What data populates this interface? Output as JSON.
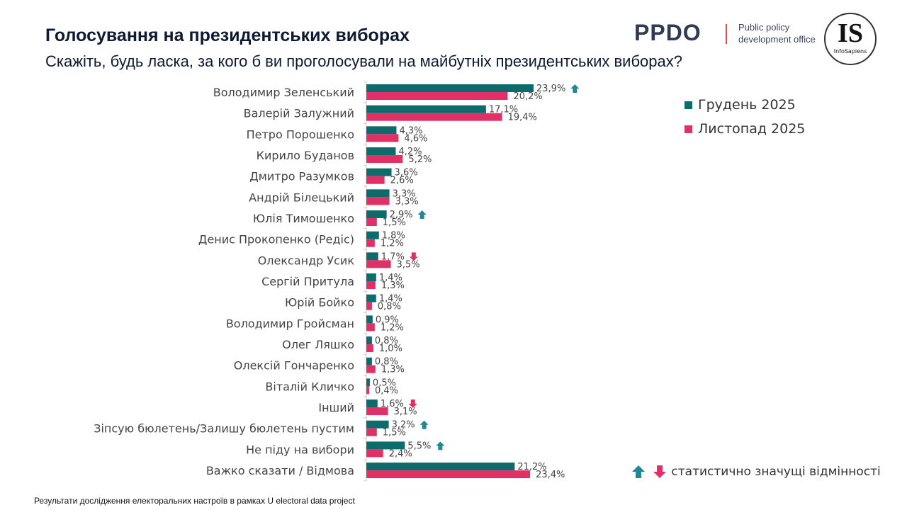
{
  "header": {
    "title": "Голосування на президентських виборах",
    "subtitle": "Скажіть, будь ласка, за кого б ви проголосували на майбутніх президентських виборах?"
  },
  "logos": {
    "ppdo": "PPDO",
    "ppdo_text_1": "Public policy",
    "ppdo_text_2": "development office",
    "is_big": "IS",
    "is_small": "InfoSapiens"
  },
  "footer": "Результати дослідження електоральних настроїв в рамках U electoral data project",
  "significance_legend": "статистично значущі відмінності",
  "colors": {
    "dec": "#0e6b6b",
    "nov": "#e03065",
    "up": "#1f8a96",
    "down": "#e03065"
  },
  "chart_data": {
    "type": "bar",
    "orientation": "horizontal",
    "legend_position": "right",
    "grid": false,
    "xlim": [
      0,
      25
    ],
    "categories": [
      "Володимир Зеленський",
      "Валерій Залужний",
      "Петро Порошенко",
      "Кирило Буданов",
      "Дмитро Разумков",
      "Андрій Білецький",
      "Юлія Тимошенко",
      "Денис Прокопенко (Редіс)",
      "Олександр Усик",
      "Сергій Притула",
      "Юрій Бойко",
      "Володимир Гройсман",
      "Олег Ляшко",
      "Олексій Гончаренко",
      "Віталій Кличко",
      "Інший",
      "Зіпсую бюлетень/Залишу бюлетень пустим",
      "Не піду на вибори",
      "Важко сказати / Відмова"
    ],
    "series": [
      {
        "name": "Грудень 2025",
        "values": [
          23.9,
          17.1,
          4.3,
          4.2,
          3.6,
          3.3,
          2.9,
          1.8,
          1.7,
          1.4,
          1.4,
          0.9,
          0.8,
          0.8,
          0.5,
          1.6,
          3.2,
          5.5,
          21.2
        ],
        "labels": [
          "23,9%",
          "17,1%",
          "4,3%",
          "4,2%",
          "3,6%",
          "3,3%",
          "2,9%",
          "1,8%",
          "1,7%",
          "1,4%",
          "1,4%",
          "0,9%",
          "0,8%",
          "0,8%",
          "0,5%",
          "1,6%",
          "3,2%",
          "5,5%",
          "21,2%"
        ]
      },
      {
        "name": "Листопад 2025",
        "values": [
          20.2,
          19.4,
          4.6,
          5.2,
          2.6,
          3.3,
          1.5,
          1.2,
          3.5,
          1.3,
          0.8,
          1.2,
          1.0,
          1.3,
          0.4,
          3.1,
          1.5,
          2.4,
          23.4
        ],
        "labels": [
          "20,2%",
          "19,4%",
          "4,6%",
          "5,2%",
          "2,6%",
          "3,3%",
          "1,5%",
          "1,2%",
          "3,5%",
          "1,3%",
          "0,8%",
          "1,2%",
          "1,0%",
          "1,3%",
          "0,4%",
          "3,1%",
          "1,5%",
          "2,4%",
          "23,4%"
        ]
      }
    ],
    "significance": [
      "up",
      "",
      "",
      "",
      "",
      "",
      "up",
      "",
      "down",
      "",
      "",
      "",
      "",
      "",
      "",
      "down",
      "up",
      "up",
      ""
    ]
  }
}
